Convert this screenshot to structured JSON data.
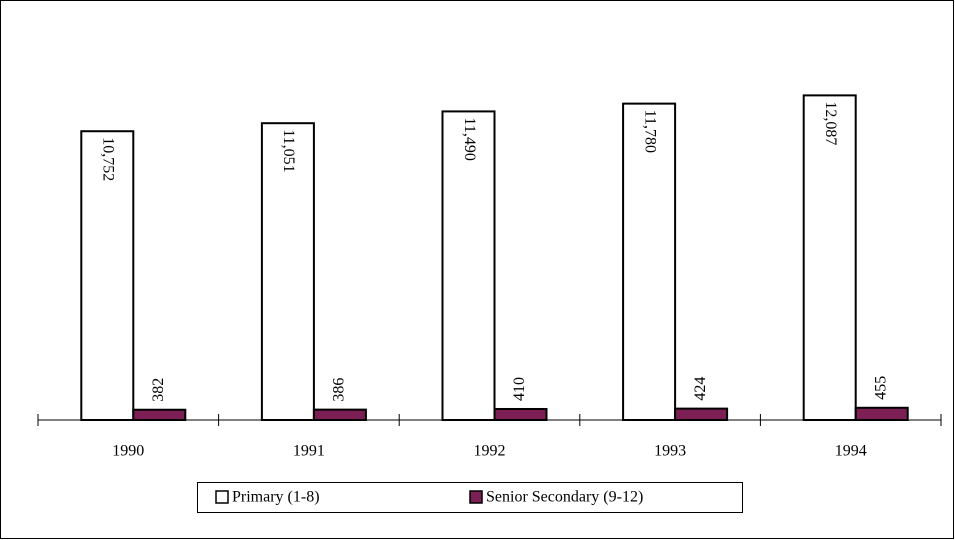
{
  "chart_data": {
    "type": "bar",
    "categories": [
      "1990",
      "1991",
      "1992",
      "1993",
      "1994"
    ],
    "series": [
      {
        "name": "Primary (1-8)",
        "color": "#ffffff",
        "values": [
          10752,
          11051,
          11490,
          11780,
          12087
        ],
        "value_labels": [
          "10,752",
          "11,051",
          "11,490",
          "11,780",
          "12,087"
        ]
      },
      {
        "name": "Senior Secondary (9-12)",
        "color": "#7b1f55",
        "values": [
          382,
          386,
          410,
          424,
          455
        ]
      }
    ],
    "ylim": [
      0,
      14000
    ],
    "legend": "bottom"
  }
}
